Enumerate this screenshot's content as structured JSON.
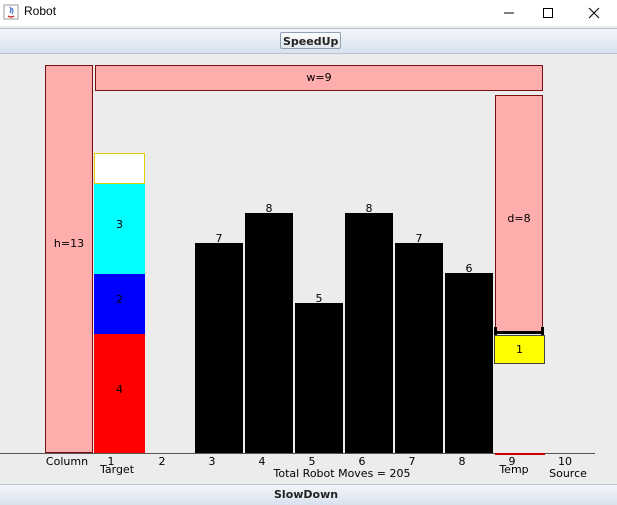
{
  "window": {
    "title": "Robot"
  },
  "toolbar": {
    "speedup_label": "SpeedUp",
    "slowdown_label": "SlowDown"
  },
  "frame": {
    "column_label": "h=13",
    "width_label": "w=9",
    "depth_label": "d=8"
  },
  "target_stack": [
    {
      "label": "3",
      "color": "#00ffff"
    },
    {
      "label": "2",
      "color": "#0000ff"
    },
    {
      "label": "4",
      "color": "#ff0000"
    }
  ],
  "temp_block": {
    "label": "1",
    "color": "#ffff00"
  },
  "bars": [
    {
      "position": "3",
      "value": "7"
    },
    {
      "position": "4",
      "value": "8"
    },
    {
      "position": "5",
      "value": "5"
    },
    {
      "position": "6",
      "value": "8"
    },
    {
      "position": "7",
      "value": "7"
    },
    {
      "position": "8",
      "value": "6"
    }
  ],
  "axis": {
    "column": "Column",
    "ticks": [
      "1",
      "2",
      "3",
      "4",
      "5",
      "6",
      "7",
      "8",
      "9",
      "10"
    ],
    "target": "Target",
    "temp": "Temp",
    "source": "Source"
  },
  "status": {
    "moves": "Total Robot Moves = 205"
  }
}
